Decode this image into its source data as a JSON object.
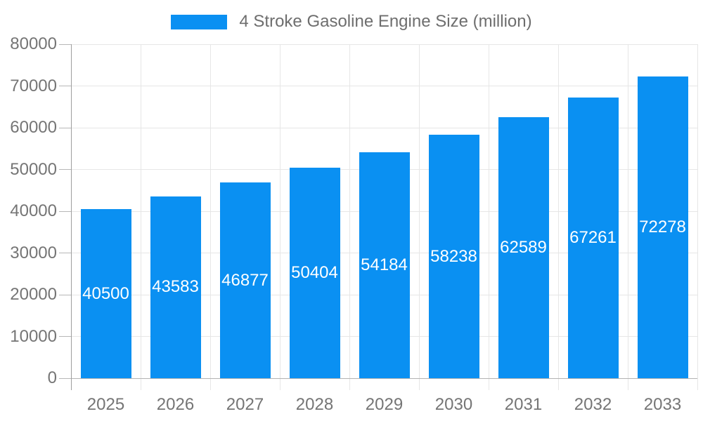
{
  "chart_data": {
    "type": "bar",
    "title": "4 Stroke Gasoline Engine Size (million)",
    "series_name": "4 Stroke Gasoline Engine Size (million)",
    "categories": [
      "2025",
      "2026",
      "2027",
      "2028",
      "2029",
      "2030",
      "2031",
      "2032",
      "2033"
    ],
    "values": [
      40500,
      43583,
      46877,
      50404,
      54184,
      58238,
      62589,
      67261,
      72278
    ],
    "xlabel": "",
    "ylabel": "",
    "ylim": [
      0,
      80000
    ],
    "ytick_step": 10000,
    "ytick_labels": [
      "0",
      "10000",
      "20000",
      "30000",
      "40000",
      "50000",
      "60000",
      "70000",
      "80000"
    ],
    "grid": true,
    "value_labels": "inside-center",
    "legend_position": "top-center",
    "colors": {
      "bar": "#0a90f2",
      "value_label_text": "#ffffff",
      "axis_text": "#757575",
      "legend_text": "#6e6e6e",
      "gridline": "#e6e6e6",
      "axis_line": "#9e9e9e",
      "zero_line": "#b3b3b3",
      "tick_mark": "#b7b7b7",
      "background": "#ffffff"
    }
  }
}
